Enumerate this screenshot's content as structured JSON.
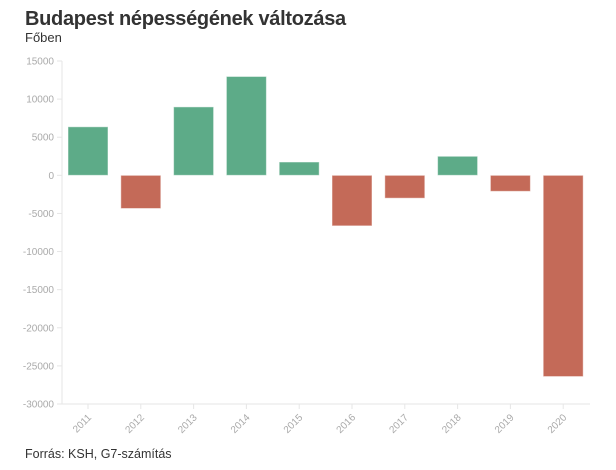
{
  "title": "Budapest népességének változása",
  "subtitle": "Főben",
  "source": "Forrás: KSH, G7-számítás",
  "colors": {
    "positive": "#5dab88",
    "negative": "#c46a58",
    "axis": "#e6e6e6",
    "tick_text": "#aaaaaa"
  },
  "chart_data": {
    "type": "bar",
    "title": "Budapest népességének változása",
    "subtitle": "Főben",
    "xlabel": "",
    "ylabel": "",
    "categories": [
      "2011",
      "2012",
      "2013",
      "2014",
      "2015",
      "2016",
      "2017",
      "2018",
      "2019",
      "2020"
    ],
    "values": [
      6370,
      -4350,
      8980,
      12970,
      1750,
      -6630,
      -3000,
      2500,
      -2100,
      -26400
    ],
    "ylim": [
      -30000,
      15000
    ],
    "yticks": [
      15000,
      10000,
      5000,
      0,
      -5000,
      -10000,
      -15000,
      -20000,
      -25000,
      -30000
    ],
    "grid": false,
    "legend": "none"
  }
}
